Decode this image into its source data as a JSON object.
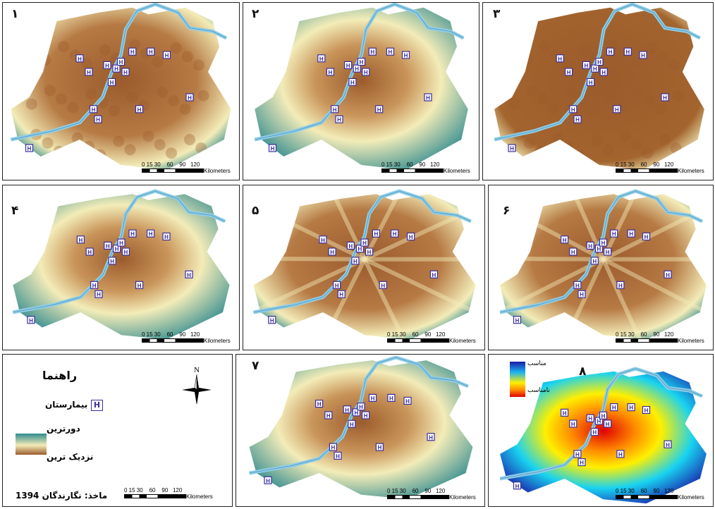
{
  "panels": [
    {
      "number": "۱",
      "style": "near_far_brown"
    },
    {
      "number": "۲",
      "style": "ring"
    },
    {
      "number": "۳",
      "style": "dense"
    },
    {
      "number": "۴",
      "style": "ring"
    },
    {
      "number": "۵",
      "style": "rays"
    },
    {
      "number": "۶",
      "style": "rays"
    },
    {
      "number": "۷",
      "style": "ring"
    },
    {
      "number": "۸",
      "style": "heat"
    }
  ],
  "scale_bar": {
    "ticks": "0 15 30    60    90   120",
    "unit": "Kilometers"
  },
  "hospital_symbol": "H",
  "legend": {
    "title": "راهنما",
    "hospital_label": "بیمارستان",
    "far_label": "دورترین",
    "near_label": "نزدیک ترین",
    "source": "ماخذ: نگارندگان 1394",
    "north": "N"
  },
  "heat_legend": {
    "suitable": "مناسب",
    "unsuitable": "نامناسب"
  },
  "colors": {
    "far": "#2f8a8f",
    "mid": "#f3ecb8",
    "near": "#9b5b2c",
    "river": "#8fcde6",
    "hospital": "#3b2ea0"
  }
}
